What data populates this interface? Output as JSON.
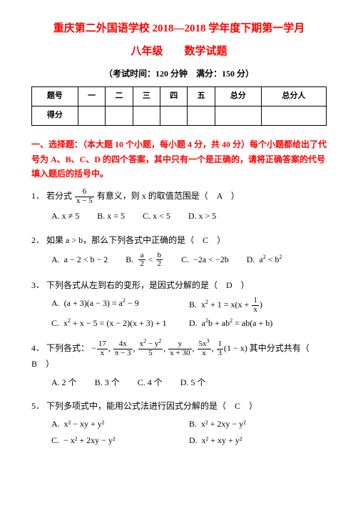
{
  "header": {
    "title_line1": "重庆第二外国语学校 2018—2018 学年度下期第一学月",
    "title_line2": "八年级　　数学试题",
    "exam_info": "（考试时间：120 分钟　满分：150 分）"
  },
  "score_table": {
    "headers": [
      "题号",
      "一",
      "二",
      "三",
      "四",
      "五",
      "总分",
      "总分人"
    ],
    "row_label": "得分"
  },
  "section1": {
    "heading": "一、选择题：（本大题 10 个小题，每小题 4 分，共 40 分）每个小题都给出了代号为 A、B、C、D 的四个答案，其中只有一个是正确的，请将正确答案的代号填入题后的括号中。"
  },
  "questions": [
    {
      "num": "1．",
      "stem_prefix": "若分式",
      "stem_suffix": "有意义，则 x 的取值范围是（　A　）",
      "frac_n": "6",
      "frac_d": "x − 5",
      "opts": [
        {
          "label": "A.",
          "text": "x ≠ 5"
        },
        {
          "label": "B.",
          "text": "x = 5"
        },
        {
          "label": "C.",
          "text": "x < 5"
        },
        {
          "label": "D.",
          "text": "x > 5"
        }
      ]
    },
    {
      "num": "2．",
      "stem": "如果 a > b，那么下列各式中正确的是（　C　）",
      "opts_html": true
    },
    {
      "num": "3．",
      "stem": "下列各式从左到右的变形，是因式分解的是（　D　）"
    },
    {
      "num": "4．",
      "stem_prefix": "下列各式：",
      "stem_suffix": "其中分式共有（　B　）",
      "opts": [
        {
          "label": "A.",
          "text": "2 个"
        },
        {
          "label": "B.",
          "text": "3 个"
        },
        {
          "label": "C.",
          "text": "4 个"
        },
        {
          "label": "D.",
          "text": "5 个"
        }
      ]
    },
    {
      "num": "5．",
      "stem": "下列多项式中，能用公式法进行因式分解的是（　C　）"
    }
  ],
  "q3_opts": {
    "A": "(a + 3)(a − 3) = a",
    "A_tail": " − 9",
    "B_lhs": "x",
    "B_mid": " + 1 = x(x + ",
    "B_frac_n": "1",
    "B_frac_d": "x",
    "B_tail": ")",
    "C": "x",
    "C_mid": " + x − 5 = (x − 2)(x + 3) + 1",
    "D_lhs": "a",
    "D_mid": "b + ab",
    "D_tail": " = ab(a + b)"
  },
  "q5_opts": {
    "A": "x² − xy + y²",
    "B": "x² + 2xy − y²",
    "C": "− x² + 2xy − y²",
    "D": "x² + xy + y²"
  },
  "style": {
    "red": "#ff0000",
    "black": "#000000",
    "bg": "#ffffff",
    "base_fontsize": 12,
    "title_fontsize": 15
  }
}
